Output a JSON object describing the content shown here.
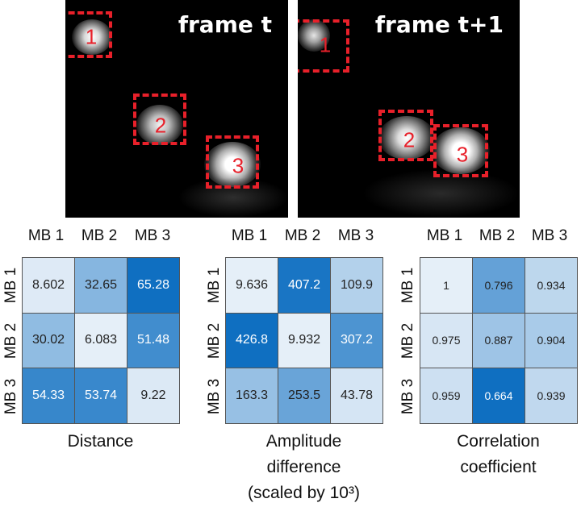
{
  "frames": [
    {
      "title": "frame t",
      "boxes": [
        {
          "label": "1"
        },
        {
          "label": "2"
        },
        {
          "label": "3"
        }
      ]
    },
    {
      "title": "frame t+1",
      "boxes": [
        {
          "label": "1"
        },
        {
          "label": "2"
        },
        {
          "label": "3"
        }
      ]
    }
  ],
  "matrices": [
    {
      "columns": [
        "MB 1",
        "MB 2",
        "MB 3"
      ],
      "rows": [
        "MB 1",
        "MB 2",
        "MB 3"
      ],
      "values": [
        [
          "8.602",
          "32.65",
          "65.28"
        ],
        [
          "30.02",
          "6.083",
          "51.48"
        ],
        [
          "54.33",
          "53.74",
          "9.22"
        ]
      ],
      "caption": [
        "Distance"
      ]
    },
    {
      "columns": [
        "MB 1",
        "MB 2",
        "MB 3"
      ],
      "rows": [
        "MB 1",
        "MB 2",
        "MB 3"
      ],
      "values": [
        [
          "9.636",
          "407.2",
          "109.9"
        ],
        [
          "426.8",
          "9.932",
          "307.2"
        ],
        [
          "163.3",
          "253.5",
          "43.78"
        ]
      ],
      "caption": [
        "Amplitude",
        "difference",
        "(scaled by 10³)"
      ]
    },
    {
      "columns": [
        "MB 1",
        "MB 2",
        "MB 3"
      ],
      "rows": [
        "MB 1",
        "MB 2",
        "MB 3"
      ],
      "values": [
        [
          "1",
          "0.796",
          "0.934"
        ],
        [
          "0.975",
          "0.887",
          "0.904"
        ],
        [
          "0.959",
          "0.664",
          "0.939"
        ]
      ],
      "caption": [
        "Correlation",
        "coefficient"
      ]
    }
  ],
  "colors": {
    "box_red": "#e8202a",
    "cell_scale_light": "#eef4fa",
    "cell_scale_dark": "#0a6cc0"
  },
  "chart_data": [
    {
      "type": "heatmap",
      "categories": [
        "MB 1",
        "MB 2",
        "MB 3"
      ],
      "rows": [
        "MB 1",
        "MB 2",
        "MB 3"
      ],
      "values": [
        [
          8.602,
          32.65,
          65.28
        ],
        [
          30.02,
          6.083,
          51.48
        ],
        [
          54.33,
          53.74,
          9.22
        ]
      ],
      "xlabel": "Distance"
    },
    {
      "type": "heatmap",
      "categories": [
        "MB 1",
        "MB 2",
        "MB 3"
      ],
      "rows": [
        "MB 1",
        "MB 2",
        "MB 3"
      ],
      "values": [
        [
          9.636,
          407.2,
          109.9
        ],
        [
          426.8,
          9.932,
          307.2
        ],
        [
          163.3,
          253.5,
          43.78
        ]
      ],
      "xlabel": "Amplitude difference (scaled by 10³)"
    },
    {
      "type": "heatmap",
      "categories": [
        "MB 1",
        "MB 2",
        "MB 3"
      ],
      "rows": [
        "MB 1",
        "MB 2",
        "MB 3"
      ],
      "values": [
        [
          1,
          0.796,
          0.934
        ],
        [
          0.975,
          0.887,
          0.904
        ],
        [
          0.959,
          0.664,
          0.939
        ]
      ],
      "xlabel": "Correlation coefficient"
    }
  ]
}
